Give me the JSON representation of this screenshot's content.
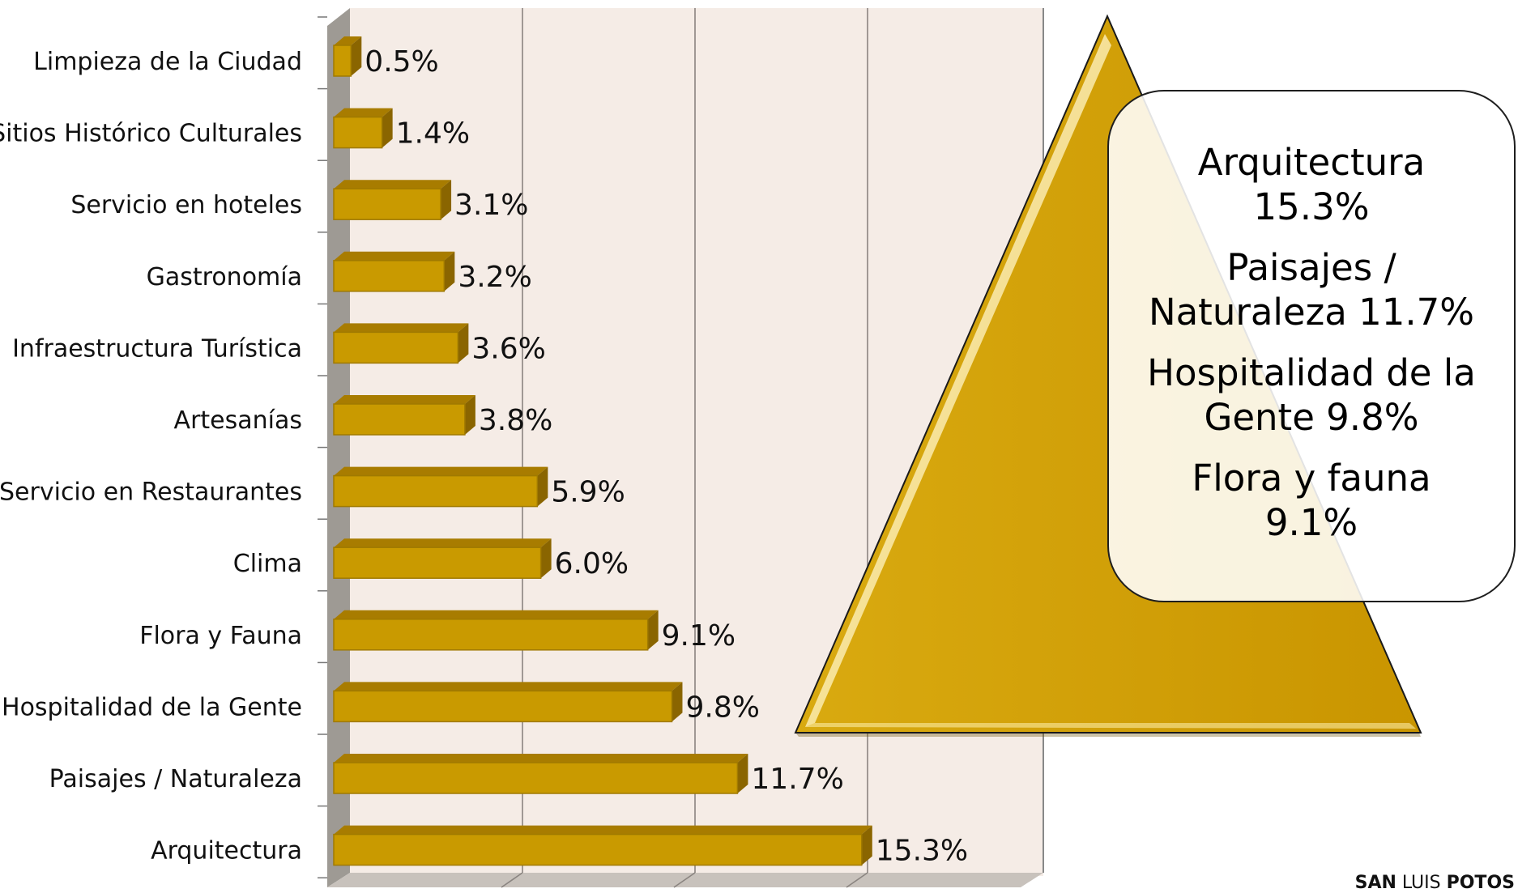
{
  "chart_data": {
    "type": "bar",
    "orientation": "horizontal",
    "style": "3d",
    "categories": [
      "Limpieza de la Ciudad",
      "Sitios Histórico Culturales",
      "Servicio en hoteles",
      "Gastronomía",
      "Infraestructura Turística",
      "Artesanías",
      "Servicio en Restaurantes",
      "Clima",
      "Flora y Fauna",
      "Hospitalidad de la Gente",
      "Paisajes / Naturaleza",
      "Arquitectura"
    ],
    "values": [
      0.5,
      1.4,
      3.1,
      3.2,
      3.6,
      3.8,
      5.9,
      6.0,
      9.1,
      9.8,
      11.7,
      15.3
    ],
    "value_labels": [
      "0.5%",
      "1.4%",
      "3.1%",
      "3.2%",
      "3.6%",
      "3.8%",
      "5.9%",
      "6.0%",
      "9.1%",
      "9.8%",
      "11.7%",
      "15.3%"
    ],
    "xlim": [
      0,
      20
    ],
    "grid": true,
    "bar_color": "#C99A00",
    "bar_top_color": "#A87C00",
    "bar_side_color": "#8A6500",
    "plot_background": "#F5ECE6",
    "wall_color": "#9E9A94"
  },
  "callout": {
    "items": [
      "Arquitectura\n15.3%",
      "Paisajes /\nNaturaleza 11.7%",
      "Hospitalidad de la\nGente 9.8%",
      "Flora y fauna\n9.1%"
    ],
    "shape_color": "#C99A00",
    "highlight_color": "#FFF2B0"
  },
  "brand": {
    "part1": "SAN",
    "part2": "LUIS",
    "part3": "POTOS"
  }
}
